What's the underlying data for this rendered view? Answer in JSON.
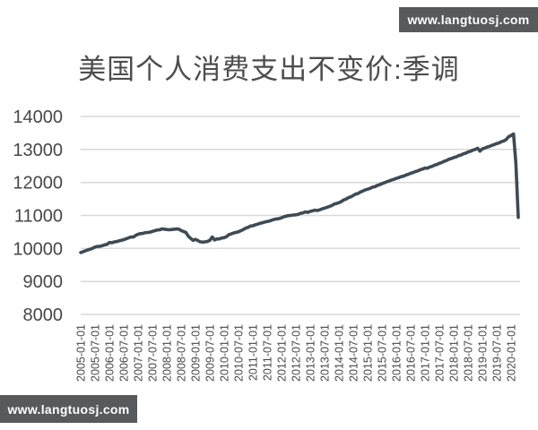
{
  "page": {
    "background": "#ffffff"
  },
  "watermarks": {
    "top_right_text": "www.langtuosj.com",
    "bottom_left_text": "www.langtuosj.com",
    "badge_bg": "#58595b",
    "badge_text_color": "#ffffff"
  },
  "chart_data": {
    "type": "line",
    "title": "美国个人消费支出不变价:季调",
    "title_color": "#4d4d4d",
    "ylim": [
      8000,
      14000
    ],
    "y_ticks": [
      8000,
      9000,
      10000,
      11000,
      12000,
      13000,
      14000
    ],
    "grid": "horizontal",
    "legend_position": "none",
    "x_tick_interval_months": 6,
    "x_tick_labels": [
      "2005-01-01",
      "2005-07-01",
      "2006-01-01",
      "2006-07-01",
      "2007-01-01",
      "2007-07-01",
      "2008-01-01",
      "2008-07-01",
      "2009-01-01",
      "2009-07-01",
      "2010-01-01",
      "2010-07-01",
      "2011-01-01",
      "2011-07-01",
      "2012-01-01",
      "2012-07-01",
      "2013-01-01",
      "2013-07-01",
      "2014-01-01",
      "2014-07-01",
      "2015-01-01",
      "2015-07-01",
      "2016-01-01",
      "2016-07-01",
      "2017-01-01",
      "2017-07-01",
      "2018-01-01",
      "2018-07-01",
      "2019-01-01",
      "2019-07-01",
      "2020-01-01"
    ],
    "colors": {
      "line": "#3e4a54",
      "grid": "#d9d9d9",
      "tick_label": "#474747"
    },
    "series": [
      {
        "name": "美国个人消费支出不变价:季调",
        "start": "2005-01",
        "end": "2020-04",
        "freq": "monthly",
        "values": [
          9877,
          9902,
          9930,
          9958,
          9980,
          10004,
          10045,
          10060,
          10062,
          10081,
          10110,
          10122,
          10180,
          10171,
          10196,
          10206,
          10230,
          10247,
          10267,
          10291,
          10319,
          10349,
          10346,
          10394,
          10431,
          10449,
          10455,
          10479,
          10483,
          10493,
          10518,
          10539,
          10557,
          10566,
          10594,
          10584,
          10575,
          10565,
          10574,
          10581,
          10589,
          10587,
          10544,
          10514,
          10486,
          10371,
          10304,
          10244,
          10274,
          10240,
          10199,
          10194,
          10200,
          10214,
          10244,
          10348,
          10255,
          10288,
          10290,
          10315,
          10328,
          10358,
          10418,
          10440,
          10470,
          10488,
          10507,
          10538,
          10570,
          10616,
          10637,
          10679,
          10688,
          10714,
          10736,
          10760,
          10779,
          10798,
          10815,
          10831,
          10858,
          10884,
          10895,
          10905,
          10930,
          10962,
          10980,
          10994,
          11004,
          11014,
          11020,
          11035,
          11065,
          11078,
          11108,
          11092,
          11122,
          11142,
          11160,
          11148,
          11172,
          11200,
          11222,
          11248,
          11272,
          11300,
          11345,
          11365,
          11385,
          11420,
          11470,
          11498,
          11540,
          11565,
          11605,
          11648,
          11665,
          11710,
          11740,
          11775,
          11795,
          11820,
          11858,
          11870,
          11910,
          11930,
          11965,
          11990,
          12020,
          12045,
          12075,
          12095,
          12125,
          12145,
          12175,
          12190,
          12225,
          12245,
          12278,
          12300,
          12330,
          12350,
          12385,
          12405,
          12435,
          12430,
          12470,
          12488,
          12525,
          12545,
          12580,
          12605,
          12640,
          12665,
          12705,
          12725,
          12755,
          12775,
          12810,
          12830,
          12868,
          12888,
          12925,
          12945,
          12980,
          13000,
          13035,
          12950,
          13020,
          13042,
          13075,
          13092,
          13125,
          13148,
          13180,
          13200,
          13238,
          13258,
          13305,
          13390,
          13421,
          13470,
          12595,
          10940
        ]
      }
    ]
  }
}
